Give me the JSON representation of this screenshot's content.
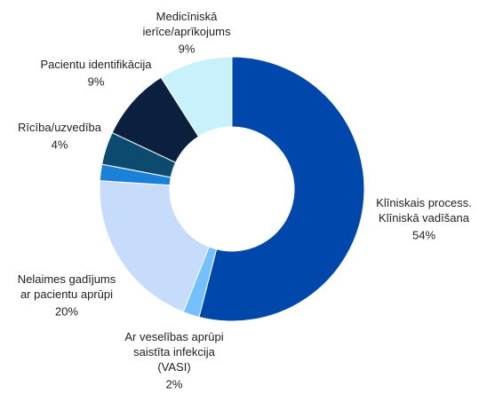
{
  "chart_data": {
    "type": "donut",
    "categories": [
      "Klīniskais process.\nKlīniskā vadīšana",
      "Ar veselības aprūpi\nsaistīta infekcija\n(VASI)",
      "Nelaimes gadījums\nar pacientu aprūpi",
      null,
      "Rīcība/uzvedība",
      "Pacientu identifikācija",
      "Medicīniskā\nierīce/aprīkojums"
    ],
    "values": [
      54,
      2,
      20,
      2,
      4,
      9,
      9
    ],
    "value_labels": [
      "54%",
      "2%",
      "20%",
      null,
      "4%",
      "9%",
      "9%"
    ],
    "colors": [
      "#0047ab",
      "#74c0fc",
      "#c6dcfa",
      "#1b80d8",
      "#0c4a70",
      "#0b1f3f",
      "#c9f1fb"
    ]
  }
}
